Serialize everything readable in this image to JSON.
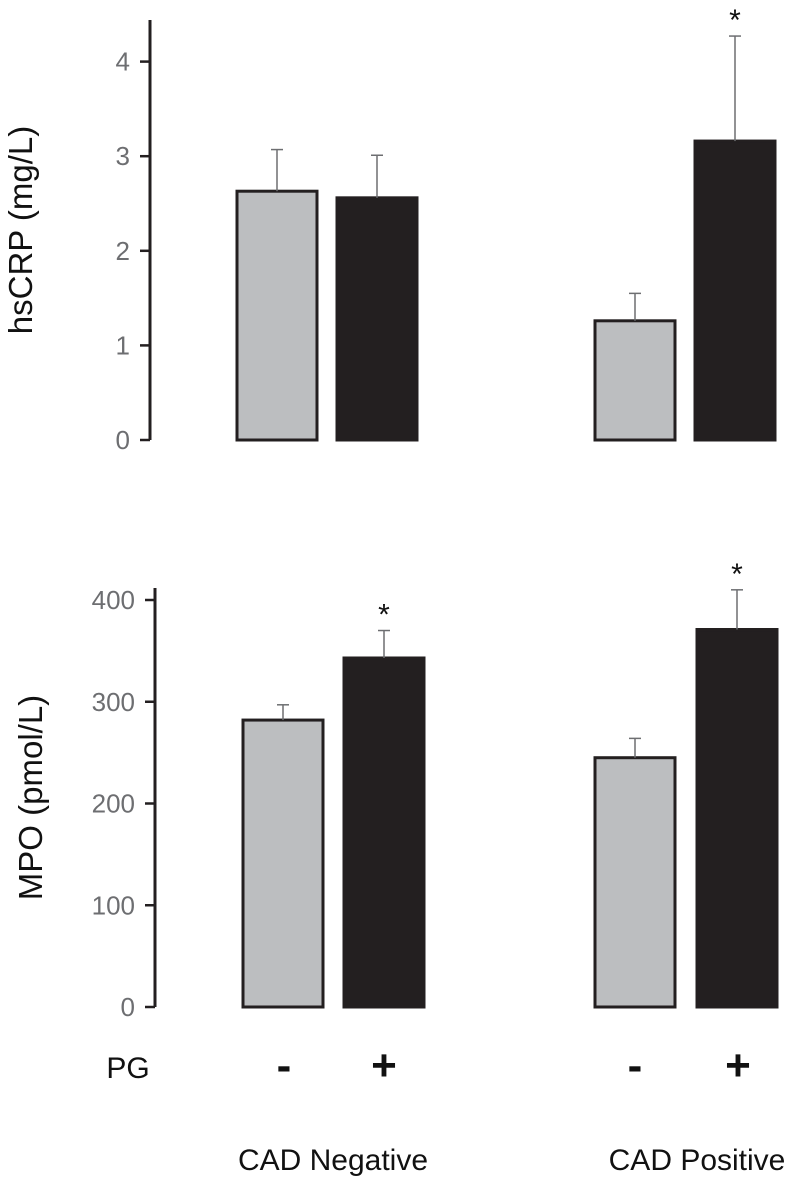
{
  "chart_data": [
    {
      "type": "bar",
      "title": "",
      "xlabel": "",
      "ylabel": "hsCRP (mg/L)",
      "ylim": [
        0,
        4.4
      ],
      "yticks": [
        "0",
        "1",
        "2",
        "3",
        "4"
      ],
      "categories": [
        "CAD Negative",
        "CAD Positive"
      ],
      "series": [
        {
          "name": "PG -",
          "color": "#bcbec0",
          "values": [
            2.63,
            1.26
          ],
          "errors": [
            0.44,
            0.29
          ],
          "significance": [
            "",
            ""
          ]
        },
        {
          "name": "PG +",
          "color": "#231f20",
          "values": [
            2.56,
            3.16
          ],
          "errors": [
            0.45,
            1.11
          ],
          "significance": [
            "",
            "*"
          ]
        }
      ]
    },
    {
      "type": "bar",
      "title": "",
      "xlabel": "",
      "ylabel": "MPO (pmol/L)",
      "ylim": [
        0,
        400
      ],
      "yticks": [
        "0",
        "100",
        "200",
        "300",
        "400"
      ],
      "categories": [
        "CAD Negative",
        "CAD Positive"
      ],
      "series": [
        {
          "name": "PG -",
          "color": "#bcbec0",
          "values": [
            282,
            245
          ],
          "errors": [
            15,
            19
          ],
          "significance": [
            "",
            ""
          ]
        },
        {
          "name": "PG +",
          "color": "#231f20",
          "values": [
            343,
            371
          ],
          "errors": [
            27,
            39
          ],
          "significance": [
            "*",
            "*"
          ]
        }
      ]
    }
  ],
  "pg_row": {
    "label": "PG",
    "signs": [
      "-",
      "+",
      "-",
      "+"
    ]
  },
  "group_labels": [
    "CAD Negative",
    "CAD Positive"
  ]
}
